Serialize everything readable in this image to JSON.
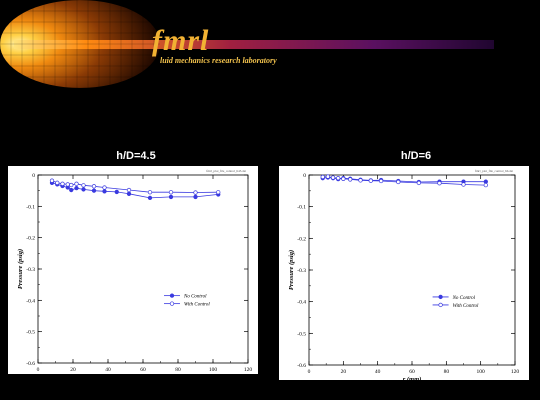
{
  "header": {
    "logo_text": "fmrl",
    "subtitle": "luid mechanics research laboratory",
    "colors": {
      "flame": "#ff9a1a",
      "band": "#5b0e5e",
      "logo": "#f2b233"
    }
  },
  "panels": [
    {
      "title": "h/D=4.5",
      "stamp": "fmrl_plot_file_control_h45.dat"
    },
    {
      "title": "h/D=6",
      "stamp": "fmrl_plot_file_control_h6.dat"
    }
  ],
  "chart_data": [
    {
      "type": "line",
      "title": "h/D=4.5",
      "xlabel": "r (mm)",
      "ylabel": "Pressure (psig)",
      "xlim": [
        0,
        120
      ],
      "ylim": [
        -0.6,
        0
      ],
      "xticks": [
        0,
        20,
        40,
        60,
        80,
        100,
        120
      ],
      "yticks": [
        0,
        -0.1,
        -0.2,
        -0.3,
        -0.4,
        -0.5,
        -0.6
      ],
      "grid": false,
      "legend": "center-right",
      "series": [
        {
          "name": "No Control",
          "marker": "filled-circle",
          "color": "#3a3ae0",
          "x": [
            8,
            11,
            14,
            17,
            19,
            22,
            26,
            32,
            38,
            45,
            52,
            64,
            76,
            90,
            103
          ],
          "y": [
            -0.025,
            -0.03,
            -0.035,
            -0.04,
            -0.048,
            -0.042,
            -0.046,
            -0.05,
            -0.052,
            -0.054,
            -0.06,
            -0.073,
            -0.07,
            -0.07,
            -0.062
          ]
        },
        {
          "name": "With Control",
          "marker": "open-circle",
          "color": "#3a3ae0",
          "x": [
            8,
            11,
            14,
            17,
            19,
            22,
            26,
            32,
            38,
            52,
            64,
            76,
            90,
            103
          ],
          "y": [
            -0.018,
            -0.025,
            -0.028,
            -0.03,
            -0.032,
            -0.028,
            -0.033,
            -0.036,
            -0.04,
            -0.048,
            -0.055,
            -0.055,
            -0.056,
            -0.055
          ]
        }
      ]
    },
    {
      "type": "line",
      "title": "h/D=6",
      "xlabel": "r (mm)",
      "ylabel": "Pressure (psig)",
      "xlim": [
        0,
        120
      ],
      "ylim": [
        -0.6,
        0
      ],
      "xticks": [
        0,
        20,
        40,
        60,
        80,
        100,
        120
      ],
      "yticks": [
        0,
        -0.1,
        -0.2,
        -0.3,
        -0.4,
        -0.5,
        -0.6
      ],
      "grid": false,
      "legend": "center-right",
      "series": [
        {
          "name": "No Control",
          "marker": "filled-circle",
          "color": "#3a3ae0",
          "x": [
            8,
            11,
            14,
            17,
            20,
            24,
            30,
            36,
            42,
            52,
            64,
            76,
            90,
            103
          ],
          "y": [
            -0.01,
            -0.008,
            -0.01,
            -0.013,
            -0.01,
            -0.012,
            -0.015,
            -0.017,
            -0.016,
            -0.019,
            -0.022,
            -0.021,
            -0.021,
            -0.021
          ]
        },
        {
          "name": "With Control",
          "marker": "open-circle",
          "color": "#3a3ae0",
          "x": [
            8,
            11,
            14,
            17,
            20,
            24,
            30,
            36,
            42,
            52,
            64,
            76,
            90,
            103
          ],
          "y": [
            -0.006,
            -0.005,
            -0.008,
            -0.01,
            -0.012,
            -0.014,
            -0.017,
            -0.018,
            -0.019,
            -0.022,
            -0.025,
            -0.026,
            -0.03,
            -0.032
          ]
        }
      ]
    }
  ]
}
